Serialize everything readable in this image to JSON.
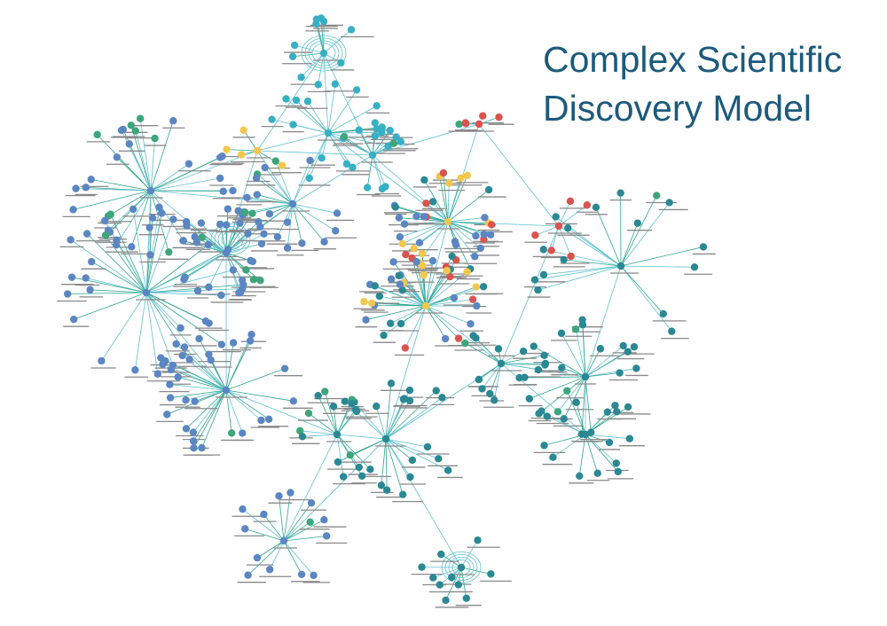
{
  "title": "Complex Scientific\nDiscovery Model",
  "node_colors": {
    "blue": "#5b86c2",
    "yellow": "#f1c84c",
    "red": "#d9534f",
    "teal": "#2b8893",
    "cyan": "#38b0c4",
    "green": "#3ea57c"
  },
  "edge_colors": [
    "#5fc0cf",
    "#2fa58e"
  ],
  "label_bar_color": "#8a8a8a"
}
